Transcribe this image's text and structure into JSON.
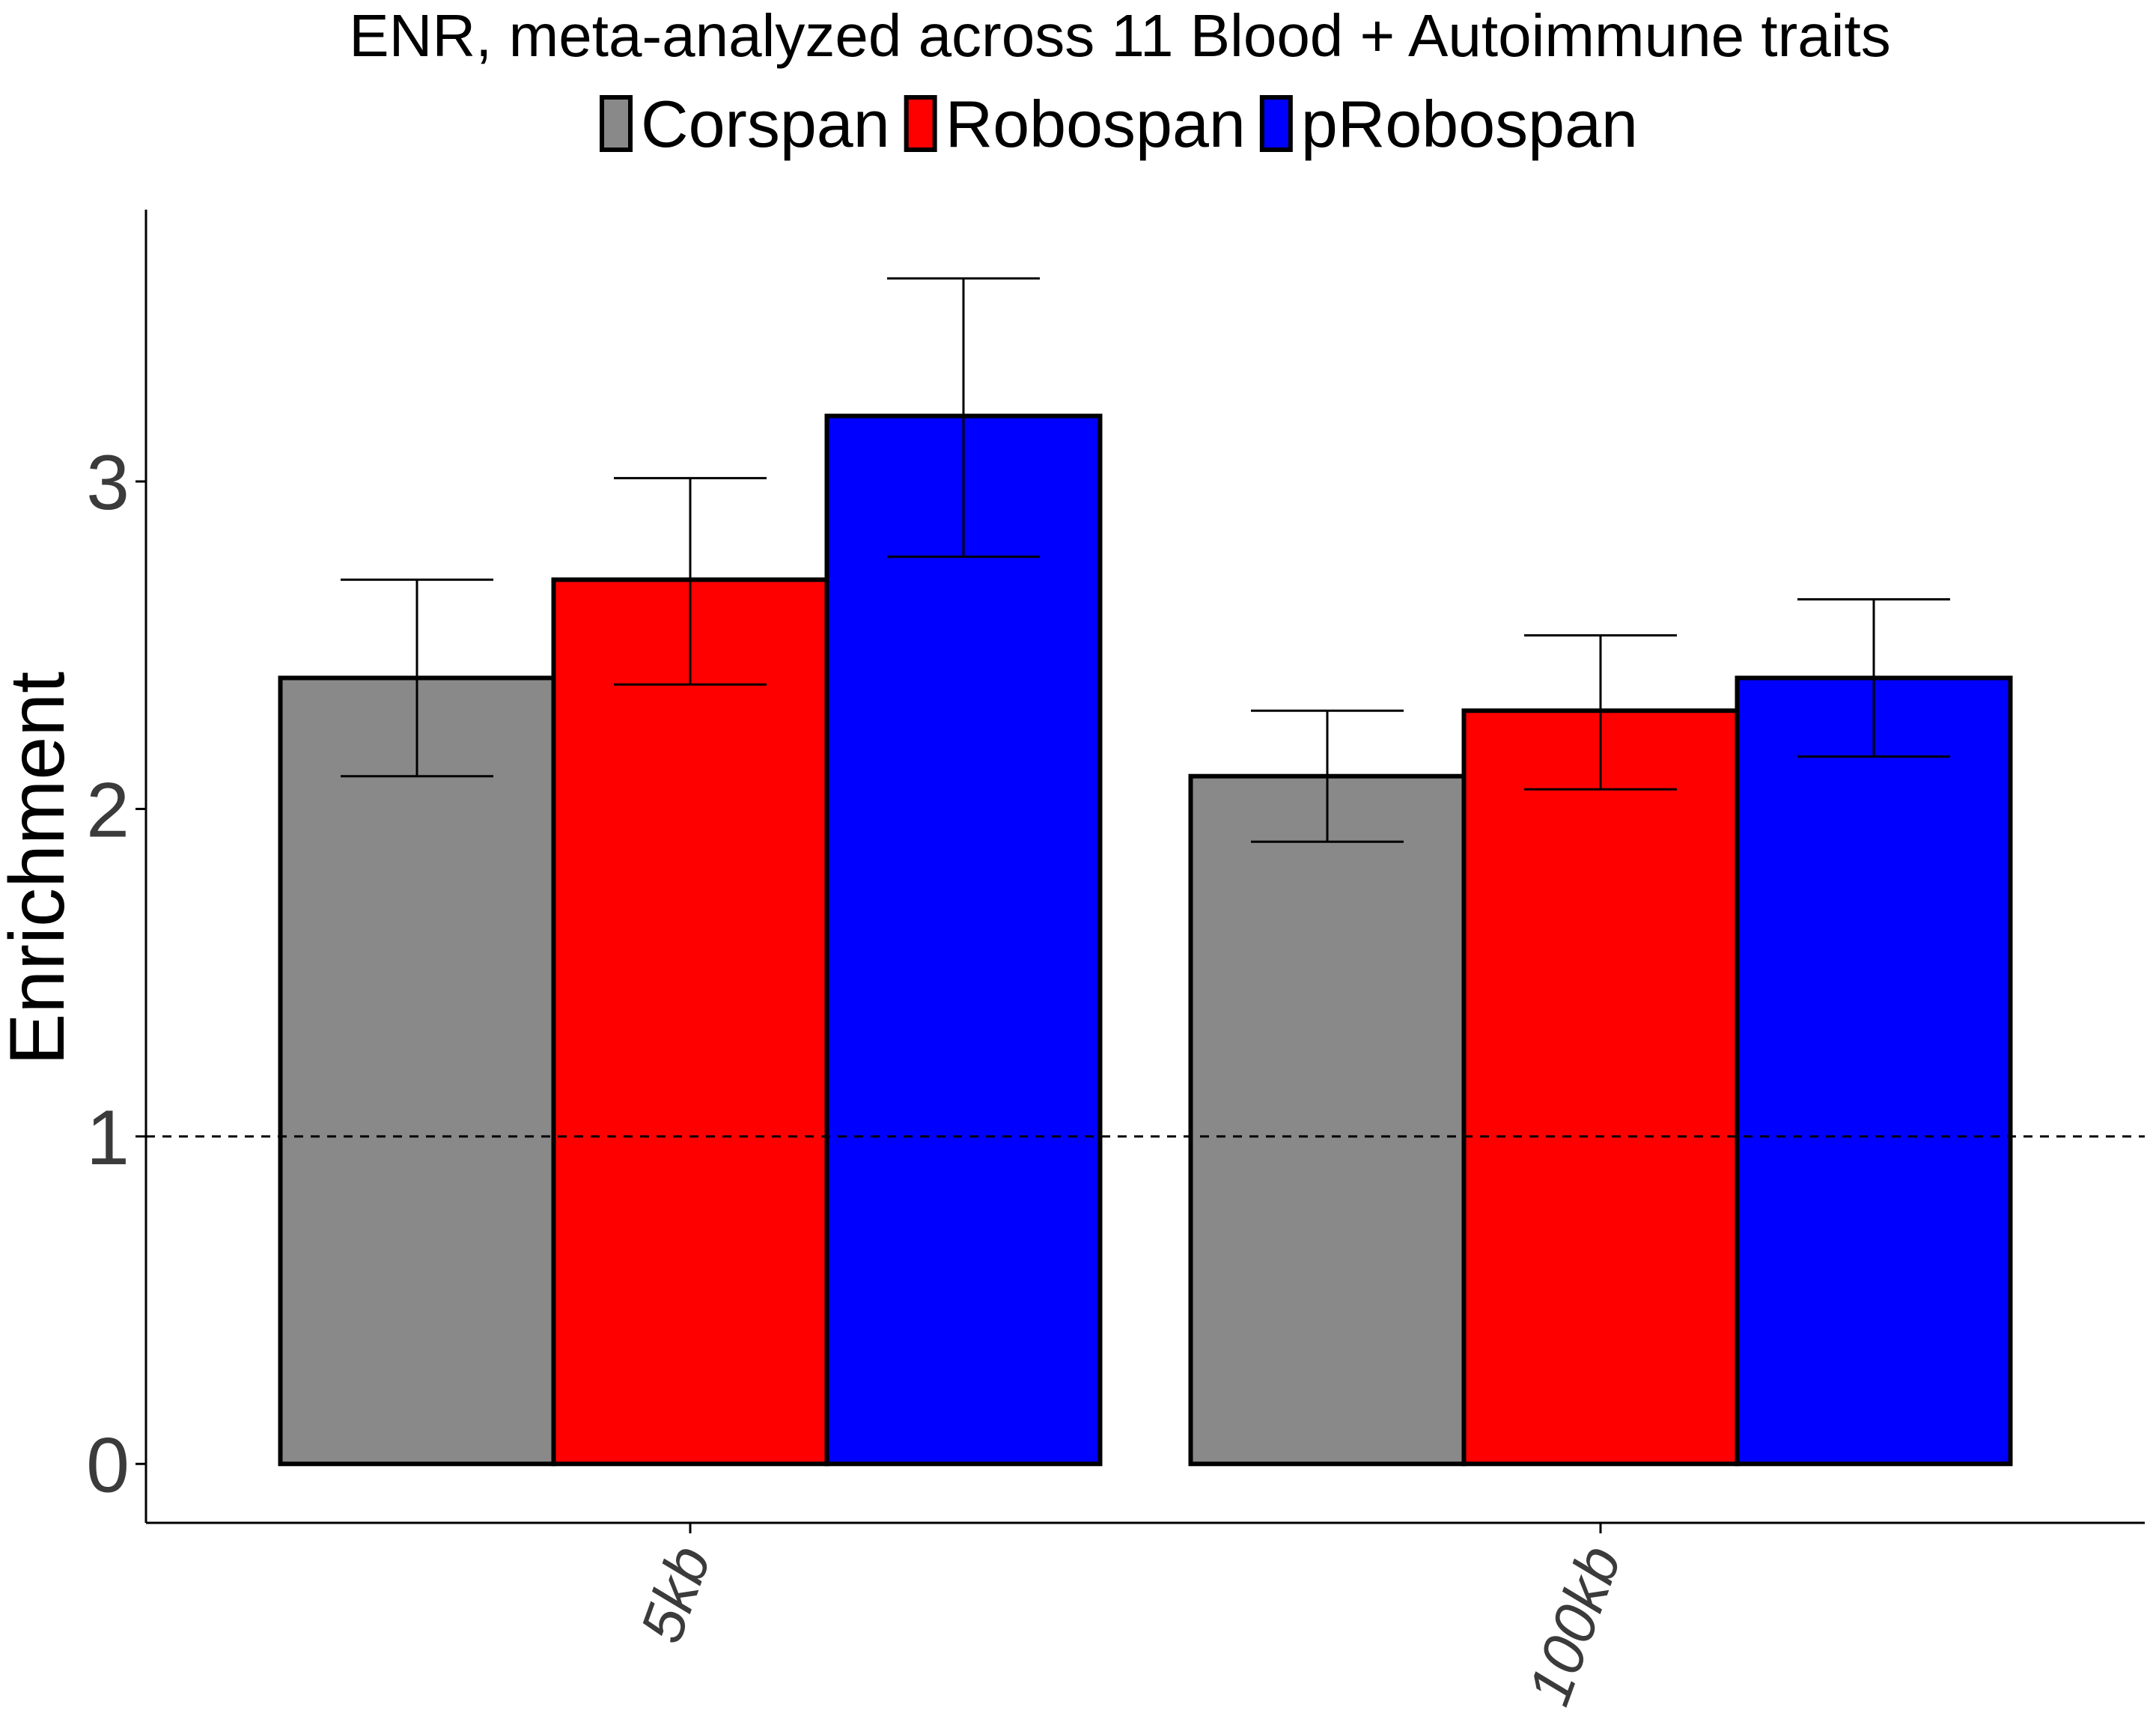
{
  "chart_data": {
    "type": "bar",
    "title": "ENR, meta-analyzed across 11 Blood + Autoimmune traits",
    "xlabel": "",
    "ylabel": "Enrichment",
    "categories": [
      "5kb",
      "100kb"
    ],
    "series": [
      {
        "name": "Corspan",
        "color": "#898989",
        "values": [
          2.4,
          2.1
        ],
        "error_low": [
          2.1,
          1.9
        ],
        "error_high": [
          2.7,
          2.3
        ]
      },
      {
        "name": "Robospan",
        "color": "#ff0000",
        "values": [
          2.7,
          2.3
        ],
        "error_low": [
          2.38,
          2.06
        ],
        "error_high": [
          3.01,
          2.53
        ]
      },
      {
        "name": "pRobospan",
        "color": "#0000ff",
        "values": [
          3.2,
          2.4
        ],
        "error_low": [
          2.77,
          2.16
        ],
        "error_high": [
          3.62,
          2.64
        ]
      }
    ],
    "yticks": [
      0,
      1,
      2,
      3
    ],
    "ylim": [
      -0.18,
      3.83
    ],
    "reference_line": 1,
    "grid": false,
    "legend_position": "top"
  }
}
